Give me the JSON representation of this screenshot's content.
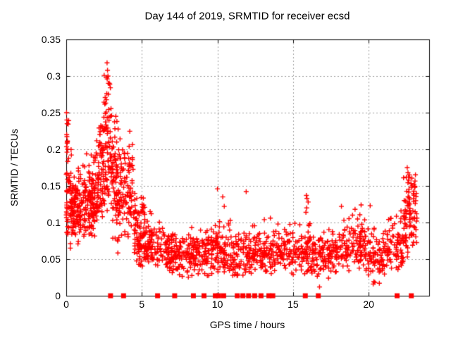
{
  "chart_data": {
    "type": "scatter",
    "title": "Day 144 of 2019, SRMTID for receiver ecsd",
    "xlabel": "GPS time / hours",
    "ylabel": "SRMTID / TECUs",
    "xlim": [
      0,
      24
    ],
    "ylim": [
      0,
      0.35
    ],
    "xticks": [
      {
        "v": 0,
        "label": "0"
      },
      {
        "v": 5,
        "label": "5"
      },
      {
        "v": 10,
        "label": "10"
      },
      {
        "v": 15,
        "label": "15"
      },
      {
        "v": 20,
        "label": "20"
      }
    ],
    "yticks": [
      {
        "v": 0,
        "label": "0"
      },
      {
        "v": 0.05,
        "label": "0.05"
      },
      {
        "v": 0.1,
        "label": "0.1"
      },
      {
        "v": 0.15,
        "label": "0.15"
      },
      {
        "v": 0.2,
        "label": "0.2"
      },
      {
        "v": 0.25,
        "label": "0.25"
      },
      {
        "v": 0.3,
        "label": "0.3"
      },
      {
        "v": 0.35,
        "label": "0.35"
      }
    ],
    "grid": true,
    "legend": "none",
    "colors": {
      "marker": "#ff0000",
      "grid": "#9b9b9b",
      "axis": "#000000",
      "background": "#ffffff"
    },
    "series": [
      {
        "name": "srmtid-points",
        "marker": "plus",
        "seed": 144,
        "clusters": [
          {
            "x0": 0.0,
            "x1": 0.35,
            "n": 55,
            "mean": 0.135,
            "sd": 0.05,
            "min": 0.06,
            "max": 0.25
          },
          {
            "x0": 0.3,
            "x1": 1.1,
            "n": 110,
            "mean": 0.122,
            "sd": 0.026,
            "min": 0.07,
            "max": 0.185
          },
          {
            "x0": 1.1,
            "x1": 1.9,
            "n": 115,
            "mean": 0.128,
            "sd": 0.027,
            "min": 0.08,
            "max": 0.2
          },
          {
            "x0": 1.9,
            "x1": 2.45,
            "n": 80,
            "mean": 0.15,
            "mean2": 0.175,
            "sd": 0.033,
            "min": 0.1,
            "max": 0.245
          },
          {
            "x0": 2.45,
            "x1": 3.05,
            "n": 90,
            "mean": 0.205,
            "sd": 0.05,
            "min": 0.1,
            "max": 0.322
          },
          {
            "x0": 3.05,
            "x1": 3.6,
            "n": 85,
            "mean": 0.15,
            "sd": 0.045,
            "min": 0.055,
            "max": 0.245
          },
          {
            "x0": 3.6,
            "x1": 4.45,
            "n": 85,
            "mean": 0.143,
            "sd": 0.035,
            "min": 0.075,
            "max": 0.225
          },
          {
            "x0": 4.45,
            "x1": 5.2,
            "n": 90,
            "mean": 0.1,
            "mean2": 0.075,
            "sd": 0.028,
            "min": 0.04,
            "max": 0.165
          },
          {
            "x0": 5.2,
            "x1": 6.2,
            "n": 80,
            "mean": 0.065,
            "sd": 0.018,
            "min": 0.03,
            "max": 0.118
          },
          {
            "x0": 6.2,
            "x1": 7.4,
            "n": 85,
            "mean": 0.058,
            "sd": 0.016,
            "min": 0.028,
            "max": 0.105
          },
          {
            "x0": 7.4,
            "x1": 8.6,
            "n": 85,
            "mean": 0.055,
            "sd": 0.015,
            "min": 0.025,
            "max": 0.1
          },
          {
            "x0": 8.6,
            "x1": 9.8,
            "n": 85,
            "mean": 0.057,
            "sd": 0.016,
            "min": 0.027,
            "max": 0.1
          },
          {
            "x0": 9.8,
            "x1": 11.0,
            "n": 85,
            "mean": 0.06,
            "sd": 0.018,
            "min": 0.03,
            "max": 0.11
          },
          {
            "x0": 11.0,
            "x1": 12.2,
            "n": 80,
            "mean": 0.055,
            "sd": 0.016,
            "min": 0.026,
            "max": 0.1
          },
          {
            "x0": 12.2,
            "x1": 13.6,
            "n": 90,
            "mean": 0.058,
            "sd": 0.016,
            "min": 0.03,
            "max": 0.105
          },
          {
            "x0": 13.6,
            "x1": 15.0,
            "n": 90,
            "mean": 0.06,
            "sd": 0.017,
            "min": 0.03,
            "max": 0.105
          },
          {
            "x0": 15.0,
            "x1": 16.2,
            "n": 80,
            "mean": 0.06,
            "sd": 0.018,
            "min": 0.028,
            "max": 0.108
          },
          {
            "x0": 16.2,
            "x1": 17.4,
            "n": 80,
            "mean": 0.055,
            "sd": 0.017,
            "min": 0.022,
            "max": 0.1
          },
          {
            "x0": 17.4,
            "x1": 18.6,
            "n": 80,
            "mean": 0.06,
            "sd": 0.017,
            "min": 0.03,
            "max": 0.105
          },
          {
            "x0": 18.6,
            "x1": 19.9,
            "n": 85,
            "mean": 0.068,
            "sd": 0.02,
            "min": 0.032,
            "max": 0.118
          },
          {
            "x0": 19.9,
            "x1": 21.2,
            "n": 80,
            "mean": 0.055,
            "sd": 0.018,
            "min": 0.016,
            "max": 0.1
          },
          {
            "x0": 21.2,
            "x1": 22.3,
            "n": 75,
            "mean": 0.068,
            "sd": 0.02,
            "min": 0.035,
            "max": 0.12
          },
          {
            "x0": 22.3,
            "x1": 23.2,
            "n": 90,
            "mean": 0.1,
            "mean2": 0.135,
            "sd": 0.028,
            "min": 0.05,
            "max": 0.172
          }
        ],
        "outliers": [
          [
            0.02,
            0.25
          ],
          [
            0.04,
            0.24
          ],
          [
            0.06,
            0.235
          ],
          [
            0.03,
            0.22
          ],
          [
            0.08,
            0.21
          ],
          [
            0.05,
            0.196
          ],
          [
            2.7,
            0.318
          ],
          [
            2.73,
            0.308
          ],
          [
            2.76,
            0.3
          ],
          [
            2.71,
            0.296
          ],
          [
            2.79,
            0.29
          ],
          [
            2.88,
            0.289
          ],
          [
            2.92,
            0.284
          ],
          [
            2.68,
            0.276
          ],
          [
            3.28,
            0.245
          ],
          [
            3.35,
            0.238
          ],
          [
            5.55,
            0.115
          ],
          [
            5.62,
            0.112
          ],
          [
            10.0,
            0.146
          ],
          [
            10.35,
            0.135
          ],
          [
            10.45,
            0.122
          ],
          [
            11.9,
            0.142
          ],
          [
            13.1,
            0.104
          ],
          [
            13.5,
            0.106
          ],
          [
            14.0,
            0.098
          ],
          [
            15.85,
            0.114
          ],
          [
            15.88,
            0.137
          ],
          [
            15.9,
            0.12
          ],
          [
            15.92,
            0.133
          ],
          [
            16.0,
            0.128
          ],
          [
            18.2,
            0.122
          ],
          [
            19.1,
            0.118
          ],
          [
            19.5,
            0.124
          ],
          [
            20.1,
            0.123
          ],
          [
            16.75,
            0.012
          ],
          [
            20.3,
            0.016
          ],
          [
            22.5,
            0.162
          ],
          [
            22.55,
            0.175
          ],
          [
            22.6,
            0.168
          ],
          [
            22.65,
            0.158
          ],
          [
            22.7,
            0.165
          ],
          [
            23.0,
            0.152
          ],
          [
            23.05,
            0.148
          ]
        ]
      },
      {
        "name": "flagged-intervals",
        "marker": "filled-square",
        "y": 0,
        "x": [
          2.93,
          3.79,
          6.04,
          7.17,
          8.41,
          9.11,
          9.86,
          10.08,
          10.41,
          11.31,
          11.68,
          12.06,
          12.46,
          12.88,
          13.4,
          13.66,
          15.81,
          16.67,
          21.88,
          22.82
        ]
      }
    ]
  }
}
